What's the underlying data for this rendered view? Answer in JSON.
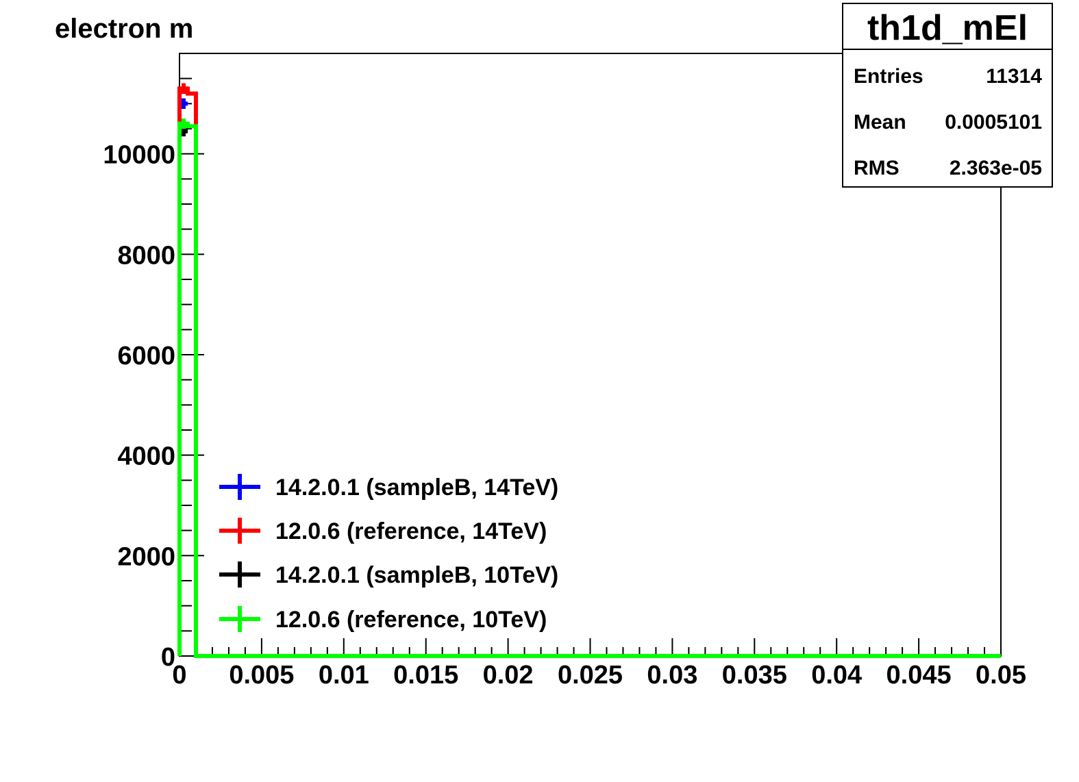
{
  "chart_data": {
    "type": "histogram",
    "title": "electron m",
    "xlabel": "",
    "ylabel": "",
    "xlim": [
      0,
      0.05
    ],
    "ylim": [
      0,
      12000
    ],
    "x_ticks": [
      "0",
      "0.005",
      "0.01",
      "0.015",
      "0.02",
      "0.025",
      "0.03",
      "0.035",
      "0.04",
      "0.045",
      "0.05"
    ],
    "x_tick_values": [
      0,
      0.005,
      0.01,
      0.015,
      0.02,
      0.025,
      0.03,
      0.035,
      0.04,
      0.045,
      0.05
    ],
    "y_ticks": [
      "0",
      "2000",
      "4000",
      "6000",
      "8000",
      "10000"
    ],
    "y_tick_values": [
      0,
      2000,
      4000,
      6000,
      8000,
      10000
    ],
    "bin_width": 0.0005,
    "series": [
      {
        "name": "14.2.0.1 (sampleB, 14TeV)",
        "color": "#0000ff",
        "style": "markers",
        "bins": [
          {
            "x": 0.00025,
            "y": 11000
          },
          {
            "x": 0.00075,
            "y": 0
          }
        ]
      },
      {
        "name": "12.0.6 (reference, 14TeV)",
        "color": "#ff0000",
        "style": "line+markers",
        "bins": [
          {
            "x": 0.00025,
            "y": 11300
          },
          {
            "x": 0.00075,
            "y": 11200
          }
        ]
      },
      {
        "name": "14.2.0.1 (sampleB, 10TeV)",
        "color": "#000000",
        "style": "markers",
        "bins": [
          {
            "x": 0.00025,
            "y": 10450
          },
          {
            "x": 0.00075,
            "y": 0
          }
        ]
      },
      {
        "name": "12.0.6 (reference, 10TeV)",
        "color": "#00ff00",
        "style": "line+markers",
        "bins": [
          {
            "x": 0.00025,
            "y": 10600
          },
          {
            "x": 0.00075,
            "y": 10550
          }
        ]
      }
    ],
    "stats_box": {
      "title": "th1d_mEl",
      "entries_label": "Entries",
      "entries_value": "11314",
      "mean_label": "Mean",
      "mean_value": "0.0005101",
      "rms_label": "RMS",
      "rms_value": "2.363e-05"
    },
    "legend_position": "bottom-left"
  }
}
